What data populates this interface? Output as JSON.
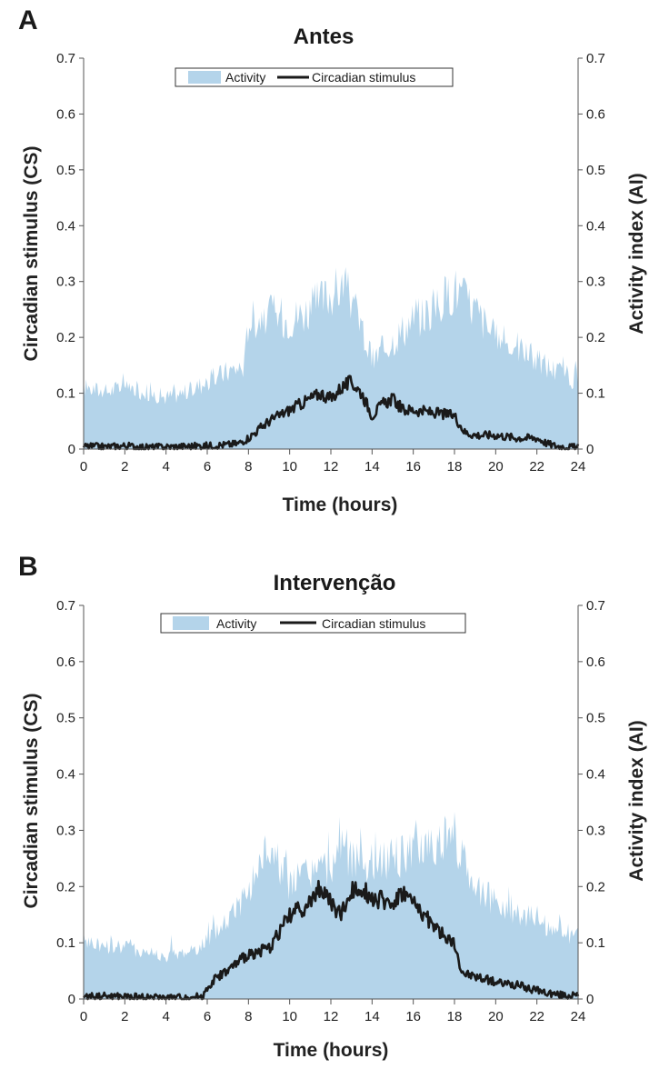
{
  "chart_data": [
    {
      "panel": "A",
      "type": "area",
      "title": "Antes",
      "xlabel": "Time (hours)",
      "ylabel_left": "Circadian stimulus (CS)",
      "ylabel_right": "Activity index (AI)",
      "xlim": [
        0,
        24
      ],
      "ylim": [
        0,
        0.7
      ],
      "x_ticks": [
        "0",
        "2",
        "4",
        "6",
        "8",
        "10",
        "12",
        "14",
        "16",
        "18",
        "20",
        "22",
        "24"
      ],
      "y_ticks": [
        "0",
        "0.1",
        "0.2",
        "0.3",
        "0.4",
        "0.5",
        "0.6",
        "0.7"
      ],
      "legend": [
        "Activity",
        "Circadian stimulus"
      ],
      "colors": {
        "activity": "#b4d4ea",
        "stimulus": "#1a1a1a"
      },
      "series": [
        {
          "name": "Activity",
          "x": [
            0,
            1,
            2,
            3,
            4,
            5,
            6,
            7,
            7.8,
            8,
            9,
            10,
            11,
            12,
            12.5,
            13,
            14,
            15,
            16,
            17,
            18,
            19,
            20,
            21,
            22,
            23,
            24
          ],
          "values": [
            0.12,
            0.11,
            0.12,
            0.11,
            0.1,
            0.11,
            0.13,
            0.15,
            0.16,
            0.25,
            0.26,
            0.25,
            0.27,
            0.3,
            0.31,
            0.29,
            0.17,
            0.21,
            0.25,
            0.27,
            0.31,
            0.27,
            0.21,
            0.2,
            0.17,
            0.15,
            0.13
          ]
        },
        {
          "name": "Circadian stimulus",
          "x": [
            0,
            1,
            2,
            3,
            4,
            5,
            6,
            7,
            7.5,
            8,
            8.5,
            9,
            10,
            11,
            11.5,
            12,
            12.5,
            13,
            13.5,
            14,
            14.5,
            15,
            15.5,
            16,
            17,
            18,
            18.5,
            19,
            20,
            21,
            22,
            22.5,
            23,
            24
          ],
          "values": [
            0.005,
            0.004,
            0.006,
            0.003,
            0.004,
            0.005,
            0.006,
            0.008,
            0.01,
            0.02,
            0.035,
            0.05,
            0.07,
            0.09,
            0.1,
            0.09,
            0.11,
            0.12,
            0.1,
            0.06,
            0.08,
            0.09,
            0.07,
            0.07,
            0.065,
            0.06,
            0.03,
            0.025,
            0.025,
            0.02,
            0.02,
            0.01,
            0.005,
            0.003
          ]
        }
      ]
    },
    {
      "panel": "B",
      "type": "area",
      "title": "Intervenção",
      "xlabel": "Time (hours)",
      "ylabel_left": "Circadian stimulus (CS)",
      "ylabel_right": "Activity index (AI)",
      "xlim": [
        0,
        24
      ],
      "ylim": [
        0,
        0.7
      ],
      "x_ticks": [
        "0",
        "2",
        "4",
        "6",
        "8",
        "10",
        "12",
        "14",
        "16",
        "18",
        "20",
        "22",
        "24"
      ],
      "y_ticks": [
        "0",
        "0.1",
        "0.2",
        "0.3",
        "0.4",
        "0.5",
        "0.6",
        "0.7"
      ],
      "legend": [
        "Activity",
        "Circadian stimulus"
      ],
      "colors": {
        "activity": "#b4d4ea",
        "stimulus": "#1a1a1a"
      },
      "series": [
        {
          "name": "Activity",
          "x": [
            0,
            1,
            2,
            3,
            4,
            5,
            6,
            7,
            8,
            9,
            10,
            11,
            12,
            12.5,
            13,
            14,
            15,
            16,
            17,
            18,
            19,
            20,
            21,
            22,
            23,
            24
          ],
          "values": [
            0.11,
            0.1,
            0.1,
            0.09,
            0.08,
            0.09,
            0.11,
            0.15,
            0.21,
            0.29,
            0.22,
            0.24,
            0.25,
            0.31,
            0.26,
            0.27,
            0.27,
            0.28,
            0.3,
            0.31,
            0.22,
            0.18,
            0.17,
            0.15,
            0.13,
            0.12
          ]
        },
        {
          "name": "Circadian stimulus",
          "x": [
            0,
            1,
            2,
            3,
            4,
            5,
            5.8,
            6,
            6.5,
            7,
            8,
            9,
            9.5,
            10,
            11,
            11.5,
            12,
            12.5,
            13,
            13.5,
            14,
            15,
            15.5,
            16,
            17,
            17.5,
            18,
            18.2,
            18.5,
            19,
            20,
            21,
            22,
            23,
            24
          ],
          "values": [
            0.005,
            0.005,
            0.004,
            0.003,
            0.002,
            0.003,
            0.005,
            0.02,
            0.04,
            0.05,
            0.08,
            0.09,
            0.12,
            0.15,
            0.17,
            0.2,
            0.17,
            0.15,
            0.19,
            0.2,
            0.18,
            0.17,
            0.19,
            0.17,
            0.13,
            0.11,
            0.1,
            0.06,
            0.045,
            0.04,
            0.03,
            0.025,
            0.015,
            0.008,
            0.005
          ]
        }
      ]
    }
  ]
}
